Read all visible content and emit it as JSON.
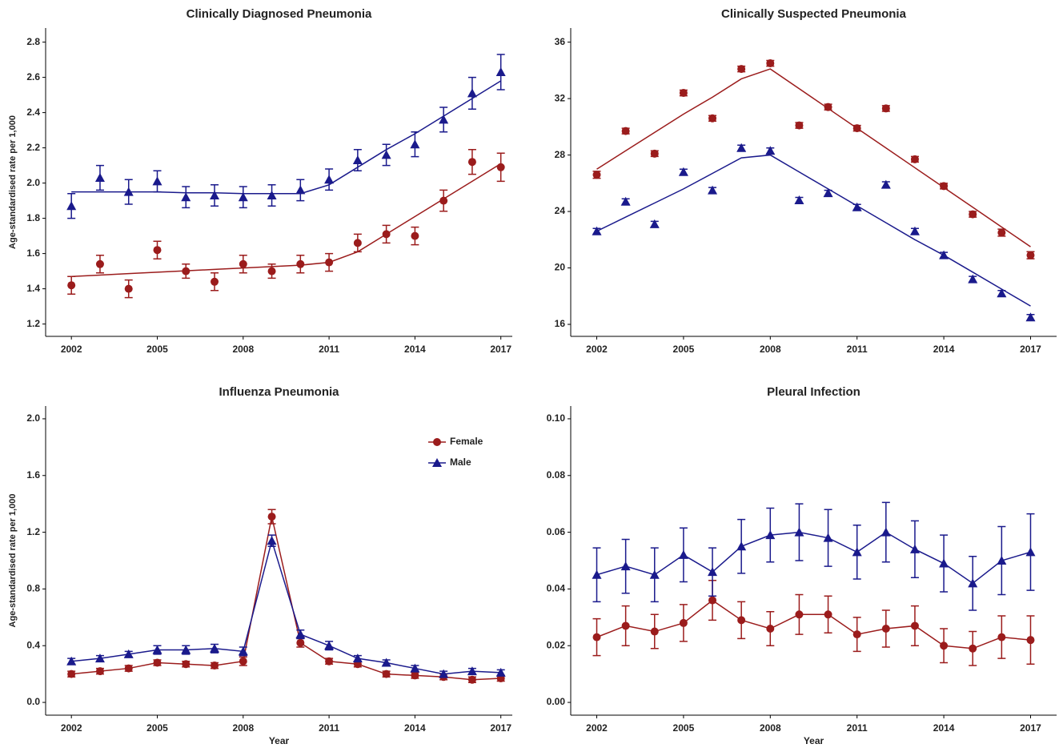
{
  "chart_data": [
    {
      "type": "line",
      "title": "Clinically Diagnosed Pneumonia",
      "ylabel": "Age-standardised rate per 1,000",
      "x": [
        2002,
        2003,
        2004,
        2005,
        2006,
        2007,
        2008,
        2009,
        2010,
        2011,
        2012,
        2013,
        2014,
        2015,
        2016,
        2017
      ],
      "xlim": [
        2001.1,
        2017.4
      ],
      "xticks": [
        2002,
        2005,
        2008,
        2011,
        2014,
        2017
      ],
      "ylim": [
        1.13,
        2.88
      ],
      "yticks": [
        1.2,
        1.4,
        1.6,
        1.8,
        {
          "value": 2,
          "label": "2.0"
        },
        2.2,
        2.4,
        2.6,
        2.8
      ],
      "connect_points": false,
      "series": [
        {
          "color": "#9b1c1c",
          "marker": "circle",
          "values": [
            1.42,
            1.54,
            1.4,
            1.62,
            1.5,
            1.44,
            1.54,
            1.5,
            1.54,
            1.55,
            1.66,
            1.71,
            1.7,
            1.9,
            2.12,
            2.09
          ],
          "errors": [
            0.05,
            0.05,
            0.05,
            0.05,
            0.04,
            0.05,
            0.05,
            0.04,
            0.05,
            0.05,
            0.05,
            0.05,
            0.05,
            0.06,
            0.07,
            0.08
          ],
          "fit": [
            1.47,
            1.478,
            1.486,
            1.494,
            1.502,
            1.51,
            1.518,
            1.526,
            1.534,
            1.55,
            1.61,
            1.71,
            1.81,
            1.91,
            2.01,
            2.11
          ]
        },
        {
          "color": "#1a1a8c",
          "marker": "triangle",
          "values": [
            1.87,
            2.03,
            1.95,
            2.01,
            1.92,
            1.93,
            1.92,
            1.93,
            1.96,
            2.02,
            2.13,
            2.16,
            2.22,
            2.36,
            2.51,
            2.63
          ],
          "errors": [
            0.07,
            0.07,
            0.07,
            0.06,
            0.06,
            0.06,
            0.06,
            0.06,
            0.06,
            0.06,
            0.06,
            0.06,
            0.07,
            0.07,
            0.09,
            0.1
          ],
          "fit": [
            1.95,
            1.95,
            1.95,
            1.95,
            1.945,
            1.945,
            1.94,
            1.94,
            1.94,
            1.99,
            2.09,
            2.19,
            2.28,
            2.38,
            2.48,
            2.58
          ]
        }
      ]
    },
    {
      "type": "line",
      "title": "Clinically Suspected Pneumonia",
      "x": [
        2002,
        2003,
        2004,
        2005,
        2006,
        2007,
        2008,
        2009,
        2010,
        2011,
        2012,
        2013,
        2014,
        2015,
        2016,
        2017
      ],
      "xlim": [
        2001.1,
        2017.9
      ],
      "xticks": [
        2002,
        2005,
        2008,
        2011,
        2014,
        2017
      ],
      "ylim": [
        15.15,
        37
      ],
      "yticks": [
        16,
        20,
        24,
        28,
        32,
        36
      ],
      "connect_points": false,
      "series": [
        {
          "color": "#9b1c1c",
          "marker": "circle",
          "values": [
            26.6,
            29.7,
            28.1,
            32.4,
            30.6,
            34.1,
            34.5,
            30.1,
            31.4,
            29.9,
            31.3,
            27.7,
            25.8,
            23.8,
            22.5,
            20.9
          ],
          "errors": [
            0.25,
            0.2,
            0.2,
            0.2,
            0.2,
            0.2,
            0.2,
            0.2,
            0.2,
            0.2,
            0.2,
            0.2,
            0.2,
            0.2,
            0.25,
            0.25
          ],
          "fit": [
            27.0,
            28.3,
            29.6,
            30.9,
            32.1,
            33.4,
            34.1,
            32.7,
            31.3,
            29.9,
            28.5,
            27.1,
            25.7,
            24.3,
            22.9,
            21.5
          ]
        },
        {
          "color": "#1a1a8c",
          "marker": "triangle",
          "values": [
            22.6,
            24.7,
            23.1,
            26.8,
            25.5,
            28.5,
            28.3,
            24.8,
            25.3,
            24.3,
            25.9,
            22.6,
            20.9,
            19.2,
            18.2,
            16.5
          ],
          "errors": [
            0.2,
            0.2,
            0.2,
            0.2,
            0.2,
            0.2,
            0.2,
            0.2,
            0.2,
            0.2,
            0.2,
            0.2,
            0.2,
            0.2,
            0.2,
            0.2
          ],
          "fit": [
            22.6,
            23.6,
            24.6,
            25.6,
            26.7,
            27.8,
            28.0,
            26.8,
            25.6,
            24.4,
            23.2,
            22.0,
            20.9,
            19.7,
            18.5,
            17.3
          ]
        }
      ]
    },
    {
      "type": "line",
      "title": "Influenza Pneumonia",
      "ylabel": "Age-standardised rate per 1,000",
      "xlabel": "Year",
      "x": [
        2002,
        2003,
        2004,
        2005,
        2006,
        2007,
        2008,
        2009,
        2010,
        2011,
        2012,
        2013,
        2014,
        2015,
        2016,
        2017
      ],
      "xlim": [
        2001.1,
        2017.4
      ],
      "xticks": [
        2002,
        2005,
        2008,
        2011,
        2014,
        2017
      ],
      "ylim": [
        -0.09,
        2.09
      ],
      "yticks": [
        {
          "value": 0,
          "label": "0.0"
        },
        0.4,
        0.8,
        1.2,
        1.6,
        {
          "value": 2,
          "label": "2.0"
        }
      ],
      "connect_points": true,
      "legend": "upper right",
      "series": [
        {
          "name": "Female",
          "color": "#9b1c1c",
          "marker": "circle",
          "values": [
            0.2,
            0.22,
            0.24,
            0.28,
            0.27,
            0.26,
            0.29,
            1.31,
            0.42,
            0.29,
            0.27,
            0.2,
            0.19,
            0.18,
            0.16,
            0.17
          ],
          "errors": [
            0.02,
            0.02,
            0.02,
            0.02,
            0.02,
            0.02,
            0.03,
            0.05,
            0.03,
            0.02,
            0.02,
            0.02,
            0.02,
            0.02,
            0.02,
            0.02
          ]
        },
        {
          "name": "Male",
          "color": "#1a1a8c",
          "marker": "triangle",
          "values": [
            0.29,
            0.31,
            0.34,
            0.37,
            0.37,
            0.38,
            0.36,
            1.14,
            0.48,
            0.4,
            0.31,
            0.28,
            0.24,
            0.2,
            0.22,
            0.21
          ],
          "errors": [
            0.02,
            0.02,
            0.02,
            0.03,
            0.03,
            0.03,
            0.03,
            0.04,
            0.03,
            0.03,
            0.02,
            0.02,
            0.02,
            0.02,
            0.02,
            0.02
          ]
        }
      ]
    },
    {
      "type": "line",
      "title": "Pleural Infection",
      "xlabel": "Year",
      "x": [
        2002,
        2003,
        2004,
        2005,
        2006,
        2007,
        2008,
        2009,
        2010,
        2011,
        2012,
        2013,
        2014,
        2015,
        2016,
        2017
      ],
      "xlim": [
        2001.1,
        2017.9
      ],
      "xticks": [
        2002,
        2005,
        2008,
        2011,
        2014,
        2017
      ],
      "ylim": [
        -0.0045,
        0.1045
      ],
      "yticks": [
        {
          "value": 0,
          "label": "0.00"
        },
        {
          "value": 0.02,
          "label": "0.02"
        },
        {
          "value": 0.04,
          "label": "0.04"
        },
        {
          "value": 0.06,
          "label": "0.06"
        },
        {
          "value": 0.08,
          "label": "0.08"
        },
        {
          "value": 0.1,
          "label": "0.10"
        }
      ],
      "connect_points": true,
      "series": [
        {
          "color": "#9b1c1c",
          "marker": "circle",
          "values": [
            0.023,
            0.027,
            0.025,
            0.028,
            0.036,
            0.029,
            0.026,
            0.031,
            0.031,
            0.024,
            0.026,
            0.027,
            0.02,
            0.019,
            0.023,
            0.022
          ],
          "errors": [
            0.0065,
            0.007,
            0.006,
            0.0065,
            0.007,
            0.0065,
            0.006,
            0.007,
            0.0065,
            0.006,
            0.0065,
            0.007,
            0.006,
            0.006,
            0.0075,
            0.0085
          ]
        },
        {
          "color": "#1a1a8c",
          "marker": "triangle",
          "values": [
            0.045,
            0.048,
            0.045,
            0.052,
            0.046,
            0.055,
            0.059,
            0.06,
            0.058,
            0.053,
            0.06,
            0.054,
            0.049,
            0.042,
            0.05,
            0.053
          ],
          "errors": [
            0.0095,
            0.0095,
            0.0095,
            0.0095,
            0.0085,
            0.0095,
            0.0095,
            0.01,
            0.01,
            0.0095,
            0.0105,
            0.01,
            0.01,
            0.0095,
            0.012,
            0.0135
          ]
        }
      ]
    }
  ]
}
